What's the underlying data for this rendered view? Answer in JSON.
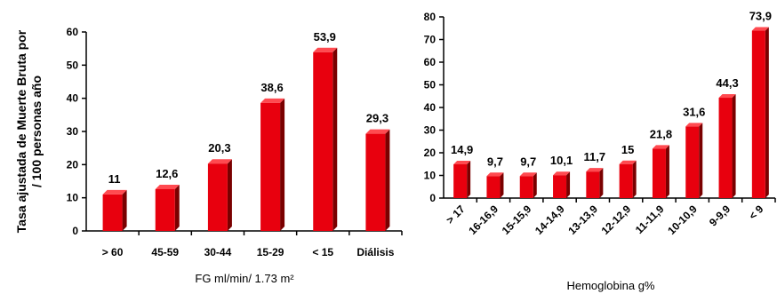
{
  "colors": {
    "bar_front": "#e8000e",
    "bar_side": "#7a0000",
    "bar_top": "#ff4a50"
  },
  "chart_data": [
    {
      "type": "bar",
      "categories": [
        "> 60",
        "45-59",
        "30-44",
        "15-29",
        "< 15",
        "Diálisis"
      ],
      "values": [
        11,
        12.6,
        20.3,
        38.6,
        53.9,
        29.3
      ],
      "value_labels": [
        "11",
        "12,6",
        "20,3",
        "38,6",
        "53,9",
        "29,3"
      ],
      "title": "",
      "xlabel": "FG ml/min/ 1.73 m²",
      "ylabel_lines": [
        "Tasa ajustada de Muerte Bruta por",
        "/ 100 personas año"
      ],
      "ylim": [
        0,
        60
      ],
      "yticks": [
        0,
        10,
        20,
        30,
        40,
        50,
        60
      ],
      "grid": false,
      "legend": "none"
    },
    {
      "type": "bar",
      "categories": [
        "> 17",
        "16-16,9",
        "15-15,9",
        "14-14,9",
        "13-13,9",
        "12-12,9",
        "11-11,9",
        "10-10,9",
        "9-9,9",
        "< 9"
      ],
      "values": [
        14.9,
        9.7,
        9.7,
        10.1,
        11.7,
        15,
        21.8,
        31.6,
        44.3,
        73.9
      ],
      "value_labels": [
        "14,9",
        "9,7",
        "9,7",
        "10,1",
        "11,7",
        "15",
        "21,8",
        "31,6",
        "44,3",
        "73,9"
      ],
      "title": "",
      "xlabel": "Hemoglobina g%",
      "ylabel": "",
      "ylim": [
        0,
        80
      ],
      "yticks": [
        0,
        10,
        20,
        30,
        40,
        50,
        60,
        70,
        80
      ],
      "grid": false,
      "legend": "none"
    }
  ]
}
